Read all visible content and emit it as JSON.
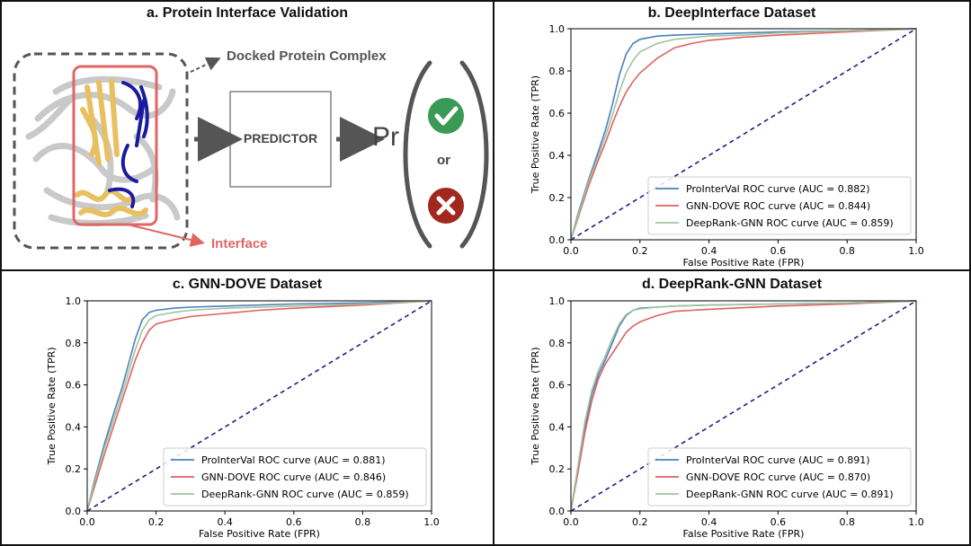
{
  "panel_a": {
    "title": "a. Protein Interface Validation",
    "docked_label": "Docked Protein Complex",
    "predictor_label": "PREDICTOR",
    "pr_label": "Pr",
    "or_label": "or",
    "interface_label": "Interface",
    "colors": {
      "interface": "#e06666",
      "check": "#3a9a55",
      "cross": "#a0281e",
      "helix_yellow": "#e8c060",
      "strand_blue": "#1a1aa0"
    }
  },
  "chart_data": [
    {
      "type": "line",
      "title": "b. DeepInterface Dataset",
      "xlabel": "False Positive Rate (FPR)",
      "ylabel": "True Positive Rate (TPR)",
      "xlim": [
        0.0,
        1.0
      ],
      "ylim": [
        0.0,
        1.0
      ],
      "xticks": [
        "0.0",
        "0.2",
        "0.4",
        "0.6",
        "0.8",
        "1.0"
      ],
      "yticks": [
        "0.0",
        "0.2",
        "0.4",
        "0.6",
        "0.8",
        "1.0"
      ],
      "legend_position": "lower-right",
      "series": [
        {
          "name": "ProInterVal ROC curve (AUC = 0.882)",
          "color": "#4d7fbf",
          "x": [
            0,
            0.02,
            0.05,
            0.08,
            0.1,
            0.12,
            0.14,
            0.16,
            0.18,
            0.2,
            0.25,
            0.3,
            0.4,
            0.5,
            0.6,
            0.8,
            1.0
          ],
          "y": [
            0,
            0.12,
            0.28,
            0.42,
            0.52,
            0.64,
            0.78,
            0.88,
            0.93,
            0.95,
            0.965,
            0.97,
            0.975,
            0.98,
            0.985,
            0.99,
            1.0
          ]
        },
        {
          "name": "GNN-DOVE ROC curve (AUC = 0.844)",
          "color": "#e06060",
          "x": [
            0,
            0.02,
            0.05,
            0.08,
            0.1,
            0.12,
            0.14,
            0.16,
            0.18,
            0.2,
            0.25,
            0.3,
            0.35,
            0.4,
            0.5,
            0.6,
            0.8,
            1.0
          ],
          "y": [
            0,
            0.1,
            0.25,
            0.38,
            0.46,
            0.55,
            0.63,
            0.7,
            0.75,
            0.79,
            0.86,
            0.91,
            0.93,
            0.945,
            0.96,
            0.97,
            0.985,
            1.0
          ]
        },
        {
          "name": "DeepRank-GNN ROC curve (AUC = 0.859)",
          "color": "#9ec49e",
          "x": [
            0,
            0.02,
            0.05,
            0.08,
            0.1,
            0.12,
            0.14,
            0.16,
            0.18,
            0.2,
            0.25,
            0.3,
            0.4,
            0.5,
            0.6,
            0.8,
            1.0
          ],
          "y": [
            0,
            0.11,
            0.27,
            0.4,
            0.49,
            0.59,
            0.7,
            0.79,
            0.85,
            0.89,
            0.93,
            0.95,
            0.965,
            0.97,
            0.98,
            0.99,
            1.0
          ]
        }
      ],
      "chance_line": {
        "color": "#1a237e"
      }
    },
    {
      "type": "line",
      "title": "c. GNN-DOVE Dataset",
      "xlabel": "False Positive Rate (FPR)",
      "ylabel": "True Positive Rate (TPR)",
      "xlim": [
        0.0,
        1.0
      ],
      "ylim": [
        0.0,
        1.0
      ],
      "xticks": [
        "0.0",
        "0.2",
        "0.4",
        "0.6",
        "0.8",
        "1.0"
      ],
      "yticks": [
        "0.0",
        "0.2",
        "0.4",
        "0.6",
        "0.8",
        "1.0"
      ],
      "legend_position": "lower-right",
      "series": [
        {
          "name": "ProInterVal ROC curve (AUC = 0.881)",
          "color": "#4d7fbf",
          "x": [
            0,
            0.02,
            0.05,
            0.08,
            0.1,
            0.12,
            0.14,
            0.16,
            0.18,
            0.2,
            0.25,
            0.3,
            0.4,
            0.6,
            0.8,
            1.0
          ],
          "y": [
            0,
            0.14,
            0.32,
            0.48,
            0.58,
            0.7,
            0.82,
            0.91,
            0.945,
            0.955,
            0.965,
            0.97,
            0.975,
            0.985,
            0.99,
            1.0
          ]
        },
        {
          "name": "GNN-DOVE ROC curve (AUC = 0.846)",
          "color": "#e06060",
          "x": [
            0,
            0.02,
            0.05,
            0.08,
            0.1,
            0.12,
            0.14,
            0.16,
            0.18,
            0.2,
            0.25,
            0.3,
            0.4,
            0.5,
            0.6,
            0.8,
            1.0
          ],
          "y": [
            0,
            0.11,
            0.27,
            0.42,
            0.52,
            0.62,
            0.72,
            0.8,
            0.86,
            0.89,
            0.91,
            0.925,
            0.94,
            0.955,
            0.965,
            0.98,
            1.0
          ]
        },
        {
          "name": "DeepRank-GNN ROC curve (AUC = 0.859)",
          "color": "#9ec49e",
          "x": [
            0,
            0.02,
            0.05,
            0.08,
            0.1,
            0.12,
            0.14,
            0.16,
            0.18,
            0.2,
            0.25,
            0.3,
            0.4,
            0.6,
            0.8,
            1.0
          ],
          "y": [
            0,
            0.13,
            0.3,
            0.45,
            0.55,
            0.66,
            0.77,
            0.86,
            0.91,
            0.93,
            0.945,
            0.955,
            0.965,
            0.975,
            0.985,
            1.0
          ]
        }
      ],
      "chance_line": {
        "color": "#1a237e"
      }
    },
    {
      "type": "line",
      "title": "d. DeepRank-GNN Dataset",
      "xlabel": "False Positive Rate (FPR)",
      "ylabel": "True Positive Rate (TPR)",
      "xlim": [
        0.0,
        1.0
      ],
      "ylim": [
        0.0,
        1.0
      ],
      "xticks": [
        "0.0",
        "0.2",
        "0.4",
        "0.6",
        "0.8",
        "1.0"
      ],
      "yticks": [
        "0.0",
        "0.2",
        "0.4",
        "0.6",
        "0.8",
        "1.0"
      ],
      "legend_position": "lower-right",
      "series": [
        {
          "name": "ProInterVal ROC curve (AUC = 0.891)",
          "color": "#4d7fbf",
          "x": [
            0,
            0.02,
            0.04,
            0.06,
            0.08,
            0.1,
            0.12,
            0.14,
            0.16,
            0.18,
            0.2,
            0.25,
            0.3,
            0.4,
            0.6,
            0.8,
            1.0
          ],
          "y": [
            0,
            0.2,
            0.4,
            0.55,
            0.65,
            0.72,
            0.8,
            0.88,
            0.93,
            0.955,
            0.965,
            0.97,
            0.975,
            0.98,
            0.985,
            0.99,
            1.0
          ]
        },
        {
          "name": "GNN-DOVE ROC curve (AUC = 0.870)",
          "color": "#e06060",
          "x": [
            0,
            0.02,
            0.04,
            0.06,
            0.08,
            0.1,
            0.12,
            0.14,
            0.16,
            0.18,
            0.2,
            0.25,
            0.3,
            0.4,
            0.6,
            0.8,
            1.0
          ],
          "y": [
            0,
            0.18,
            0.37,
            0.52,
            0.63,
            0.7,
            0.75,
            0.8,
            0.85,
            0.88,
            0.9,
            0.93,
            0.95,
            0.96,
            0.975,
            0.985,
            1.0
          ]
        },
        {
          "name": "DeepRank-GNN ROC curve (AUC = 0.891)",
          "color": "#9ec49e",
          "x": [
            0,
            0.02,
            0.04,
            0.06,
            0.08,
            0.1,
            0.12,
            0.14,
            0.16,
            0.18,
            0.2,
            0.25,
            0.3,
            0.4,
            0.6,
            0.8,
            1.0
          ],
          "y": [
            0,
            0.21,
            0.42,
            0.57,
            0.67,
            0.74,
            0.82,
            0.89,
            0.935,
            0.955,
            0.962,
            0.97,
            0.975,
            0.98,
            0.985,
            0.99,
            1.0
          ]
        }
      ],
      "chance_line": {
        "color": "#1a237e"
      }
    }
  ]
}
